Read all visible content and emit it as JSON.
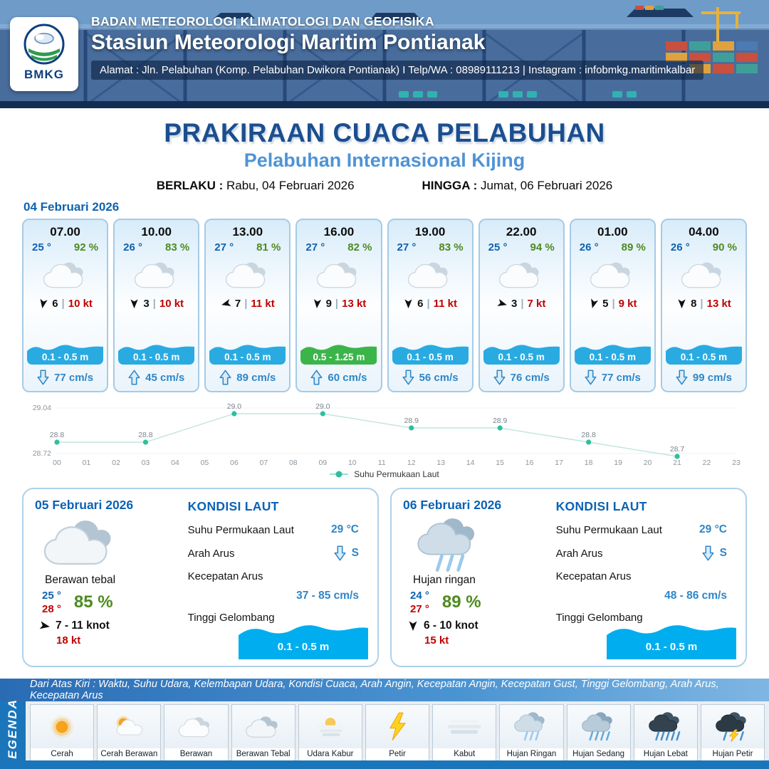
{
  "header": {
    "logo_text": "BMKG",
    "org": "BADAN METEOROLOGI KLIMATOLOGI DAN GEOFISIKA",
    "station": "Stasiun Meteorologi Maritim Pontianak",
    "address": "Alamat : Jln. Pelabuhan (Komp. Pelabuhan Dwikora Pontianak) I Telp/WA : 08989111213 | Instagram : infobmkg.maritimkalbar"
  },
  "title": {
    "main": "PRAKIRAAN CUACA PELABUHAN",
    "subtitle": "Pelabuhan Internasional Kijing",
    "valid_from_label": "BERLAKU :",
    "valid_from": "Rabu, 04 Februari 2026",
    "valid_to_label": "HINGGA :",
    "valid_to": "Jumat, 06 Februari 2026"
  },
  "ui": {
    "divider": "|"
  },
  "hourly_section": {
    "date": "04 Februari 2026",
    "cards": [
      {
        "time": "07.00",
        "temp": "25 °",
        "humidity": "92 %",
        "weather_icon": "berawan",
        "wind_deg": 10,
        "wind_speed": "6",
        "gust": "10 kt",
        "wave": "0.1 - 0.5 m",
        "wave_level": "low",
        "current_dir": "down",
        "current": "77 cm/s"
      },
      {
        "time": "10.00",
        "temp": "26 °",
        "humidity": "83 %",
        "weather_icon": "berawan",
        "wind_deg": 0,
        "wind_speed": "3",
        "gust": "10 kt",
        "wave": "0.1 - 0.5 m",
        "wave_level": "low",
        "current_dir": "up",
        "current": "45 cm/s"
      },
      {
        "time": "13.00",
        "temp": "27 °",
        "humidity": "81 %",
        "weather_icon": "berawan",
        "wind_deg": 75,
        "wind_speed": "7",
        "gust": "11 kt",
        "wave": "0.1 - 0.5 m",
        "wave_level": "low",
        "current_dir": "up",
        "current": "89 cm/s"
      },
      {
        "time": "16.00",
        "temp": "27 °",
        "humidity": "82 %",
        "weather_icon": "berawan",
        "wind_deg": 5,
        "wind_speed": "9",
        "gust": "13 kt",
        "wave": "0.5 - 1.25 m",
        "wave_level": "moderate",
        "current_dir": "up",
        "current": "60 cm/s"
      },
      {
        "time": "19.00",
        "temp": "27 °",
        "humidity": "83 %",
        "weather_icon": "berawan",
        "wind_deg": 0,
        "wind_speed": "6",
        "gust": "11 kt",
        "wave": "0.1 - 0.5 m",
        "wave_level": "low",
        "current_dir": "down",
        "current": "56 cm/s"
      },
      {
        "time": "22.00",
        "temp": "25 °",
        "humidity": "94 %",
        "weather_icon": "berawan",
        "wind_deg": -75,
        "wind_speed": "3",
        "gust": "7 kt",
        "wave": "0.1 - 0.5 m",
        "wave_level": "low",
        "current_dir": "down",
        "current": "76 cm/s"
      },
      {
        "time": "01.00",
        "temp": "26 °",
        "humidity": "89 %",
        "weather_icon": "berawan",
        "wind_deg": 15,
        "wind_speed": "5",
        "gust": "9 kt",
        "wave": "0.1 - 0.5 m",
        "wave_level": "low",
        "current_dir": "down",
        "current": "77 cm/s"
      },
      {
        "time": "04.00",
        "temp": "26 °",
        "humidity": "90 %",
        "weather_icon": "berawan",
        "wind_deg": 0,
        "wind_speed": "8",
        "gust": "13 kt",
        "wave": "0.1 - 0.5 m",
        "wave_level": "low",
        "current_dir": "down",
        "current": "99 cm/s"
      }
    ]
  },
  "chart_data": {
    "type": "line",
    "series": [
      {
        "name": "Suhu Permukaan Laut",
        "x": [
          0,
          3,
          6,
          9,
          12,
          15,
          18,
          21
        ],
        "values": [
          28.8,
          28.8,
          29.0,
          29.0,
          28.9,
          28.9,
          28.8,
          28.7
        ]
      }
    ],
    "x_ticks": [
      "00",
      "01",
      "02",
      "03",
      "04",
      "05",
      "06",
      "07",
      "08",
      "09",
      "10",
      "11",
      "12",
      "13",
      "14",
      "15",
      "16",
      "17",
      "18",
      "19",
      "20",
      "21",
      "22",
      "23"
    ],
    "ylim": [
      28.72,
      29.04
    ],
    "y_tick_labels": [
      "29.04",
      "28.72"
    ],
    "legend": "Suhu Permukaan Laut",
    "marker_color": "#2dbfa0",
    "grid": false,
    "legend_position": "bottom-center"
  },
  "daily": [
    {
      "date": "05 Februari 2026",
      "weather_icon": "berawan-tebal",
      "condition": "Berawan tebal",
      "temp_min": "25 °",
      "temp_max": "28 °",
      "humidity": "85 %",
      "wind_deg": -80,
      "wind": "7 - 11 knot",
      "gust": "18 kt",
      "sea": {
        "heading": "KONDISI LAUT",
        "sst_label": "Suhu Permukaan Laut",
        "sst": "29 °C",
        "current_dir_label": "Arah Arus",
        "current_dir": "S",
        "current_arrow": "down",
        "current_speed_label": "Kecepatan Arus",
        "current_speed": "37 - 85 cm/s",
        "wave_label": "Tinggi Gelombang",
        "wave": "0.1 - 0.5 m"
      }
    },
    {
      "date": "06 Februari 2026",
      "weather_icon": "hujan-ringan",
      "condition": "Hujan ringan",
      "temp_min": "24 °",
      "temp_max": "27 °",
      "humidity": "89 %",
      "wind_deg": 0,
      "wind": "6 - 10 knot",
      "gust": "15 kt",
      "sea": {
        "heading": "KONDISI LAUT",
        "sst_label": "Suhu Permukaan Laut",
        "sst": "29 °C",
        "current_dir_label": "Arah Arus",
        "current_dir": "S",
        "current_arrow": "down",
        "current_speed_label": "Kecepatan Arus",
        "current_speed": "48 - 86 cm/s",
        "wave_label": "Tinggi Gelombang",
        "wave": "0.1 - 0.5 m"
      }
    }
  ],
  "legend": {
    "note": "Dari Atas Kiri : Waktu, Suhu Udara, Kelembapan Udara, Kondisi Cuaca, Arah Angin, Kecepatan Angin, Kecepatan Gust, Tinggi Gelombang, Arah Arus, Kecepatan Arus",
    "title": "LEGENDA",
    "items": [
      {
        "label": "Cerah",
        "icon": "cerah"
      },
      {
        "label": "Cerah Berawan",
        "icon": "cerah-berawan"
      },
      {
        "label": "Berawan",
        "icon": "berawan"
      },
      {
        "label": "Berawan Tebal",
        "icon": "berawan-tebal"
      },
      {
        "label": "Udara Kabur",
        "icon": "udara-kabur"
      },
      {
        "label": "Petir",
        "icon": "petir"
      },
      {
        "label": "Kabut",
        "icon": "kabut"
      },
      {
        "label": "Hujan Ringan",
        "icon": "hujan-ringan"
      },
      {
        "label": "Hujan Sedang",
        "icon": "hujan-sedang"
      },
      {
        "label": "Hujan Lebat",
        "icon": "hujan-lebat"
      },
      {
        "label": "Hujan Petir",
        "icon": "hujan-petir"
      }
    ]
  },
  "colors": {
    "accent_blue": "#1b4e8f",
    "subtitle_blue": "#4f93d6",
    "temp_blue": "#0f62b0",
    "humidity_green": "#4e8a1f",
    "gust_red": "#c00000",
    "wave_blue": "#29abe2",
    "wave_green": "#3bb54a",
    "current_blue": "#2e86c8",
    "sst_teal": "#2dbfa0",
    "legend_bar_blue": "#1b75bb"
  }
}
